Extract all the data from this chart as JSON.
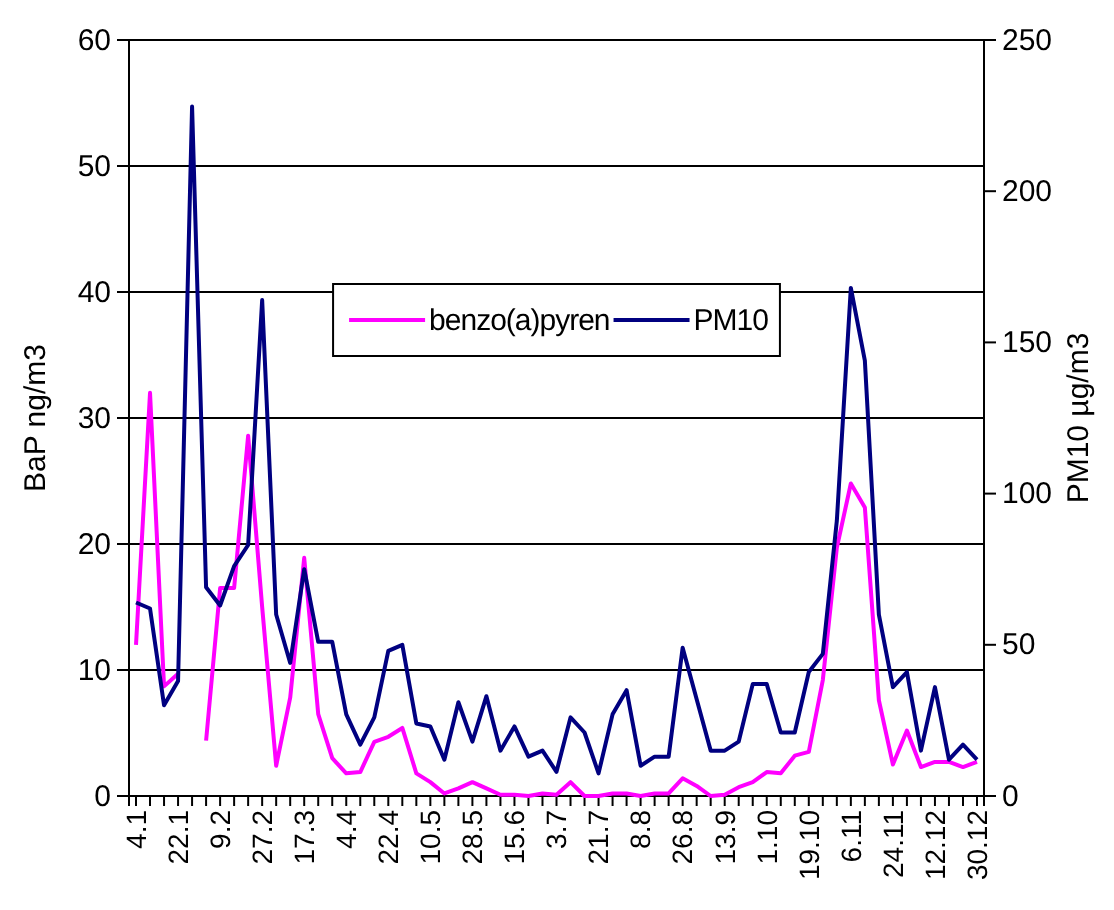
{
  "chart_data": {
    "type": "line",
    "ylabel": "BaP ng/m3",
    "y2label": "PM10 µg/m3",
    "categories": [
      "4.1",
      null,
      null,
      "22.1",
      null,
      null,
      "9.2",
      null,
      null,
      "27.2",
      null,
      null,
      "17.3",
      null,
      null,
      "4.4",
      null,
      null,
      "22.4",
      null,
      null,
      "10.5",
      null,
      null,
      "28.5",
      null,
      null,
      "15.6",
      null,
      null,
      "3.7",
      null,
      null,
      "21.7",
      null,
      null,
      "8.8",
      null,
      null,
      "26.8",
      null,
      null,
      "13.9",
      null,
      null,
      "1.10",
      null,
      null,
      "19.10",
      null,
      null,
      "6.11",
      null,
      null,
      "24.11",
      null,
      null,
      "12.12",
      null,
      null,
      "30.12"
    ],
    "series": [
      {
        "name": "benzo(a)pyren",
        "color": "#ff00ff",
        "values": [
          12,
          32,
          8.7,
          9.7,
          null,
          4.4,
          16.5,
          16.5,
          28.6,
          15,
          2.4,
          7.8,
          18.9,
          6.5,
          3,
          1.8,
          1.9,
          4.3,
          4.7,
          5.4,
          1.8,
          1.1,
          0.2,
          0.6,
          1.1,
          0.6,
          0.1,
          0.1,
          0,
          0.2,
          0.1,
          1.1,
          0,
          0,
          0.2,
          0.2,
          0,
          0.2,
          0.2,
          1.4,
          0.8,
          0,
          0.1,
          0.7,
          1.1,
          1.9,
          1.8,
          3.2,
          3.5,
          9.2,
          19.7,
          24.8,
          22.9,
          7.6,
          2.5,
          5.2,
          2.3,
          2.7,
          2.7,
          2.3,
          2.7
        ]
      },
      {
        "name": "PM10",
        "color": "#000080",
        "axis": "y2",
        "values": [
          64,
          62,
          30,
          38,
          228,
          69,
          63,
          76,
          83,
          164,
          60,
          44,
          75,
          51,
          51,
          27,
          17,
          26,
          48,
          50,
          24,
          23,
          12,
          31,
          18,
          33,
          15,
          23,
          13,
          15,
          8,
          26,
          21,
          7.5,
          27,
          35,
          10,
          13,
          13,
          49,
          32,
          15,
          15,
          18,
          37,
          37,
          21,
          21,
          41,
          47,
          91,
          168,
          144,
          60,
          36,
          41,
          15,
          36,
          12,
          17,
          12
        ]
      }
    ],
    "ylim": [
      0,
      60
    ],
    "yticks": [
      0,
      10,
      20,
      30,
      40,
      50,
      60
    ],
    "y2lim": [
      0,
      250
    ],
    "y2ticks": [
      0,
      50,
      100,
      150,
      200,
      250
    ],
    "grid": "y",
    "legend": "top",
    "marker": "none",
    "line_style": "solid"
  }
}
